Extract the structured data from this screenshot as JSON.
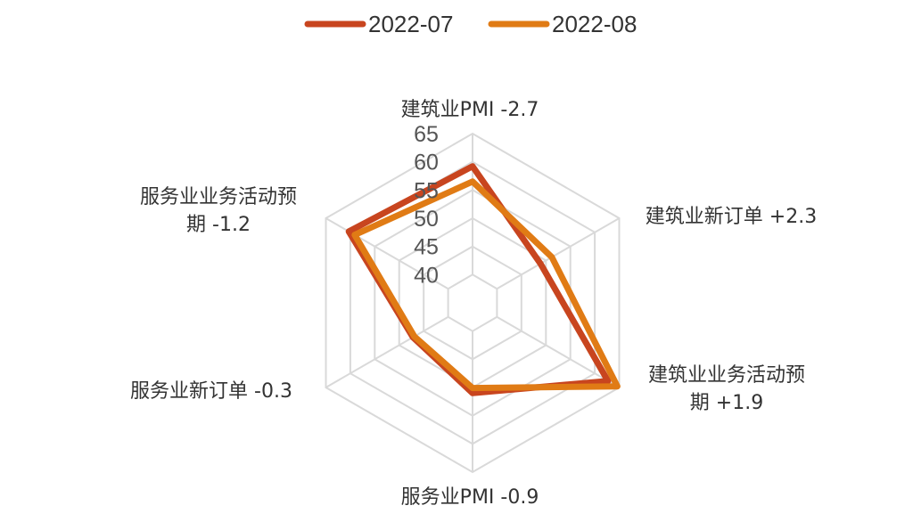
{
  "chart_data": {
    "type": "radar",
    "title": "",
    "categories": [
      [
        "建筑业PMI -2.7"
      ],
      [
        "建筑业新订单 +2.3"
      ],
      [
        "建筑业业务活动预",
        "期 +1.9"
      ],
      [
        "服务业PMI -0.9"
      ],
      [
        "服务业新订单 -0.3"
      ],
      [
        "服务业业务活动预",
        "期 -1.2"
      ]
    ],
    "radial_ticks": [
      "40",
      "45",
      "50",
      "55",
      "60",
      "65"
    ],
    "rlim": [
      35,
      65
    ],
    "series": [
      {
        "name": "2022-07",
        "color": "#C8451F",
        "values": [
          59.2,
          48.9,
          62.7,
          51.0,
          47.2,
          60.3
        ]
      },
      {
        "name": "2022-08",
        "color": "#E07B15",
        "values": [
          56.5,
          51.2,
          64.6,
          50.1,
          46.9,
          59.1
        ]
      }
    ],
    "legend_position": "top",
    "grid": true
  }
}
